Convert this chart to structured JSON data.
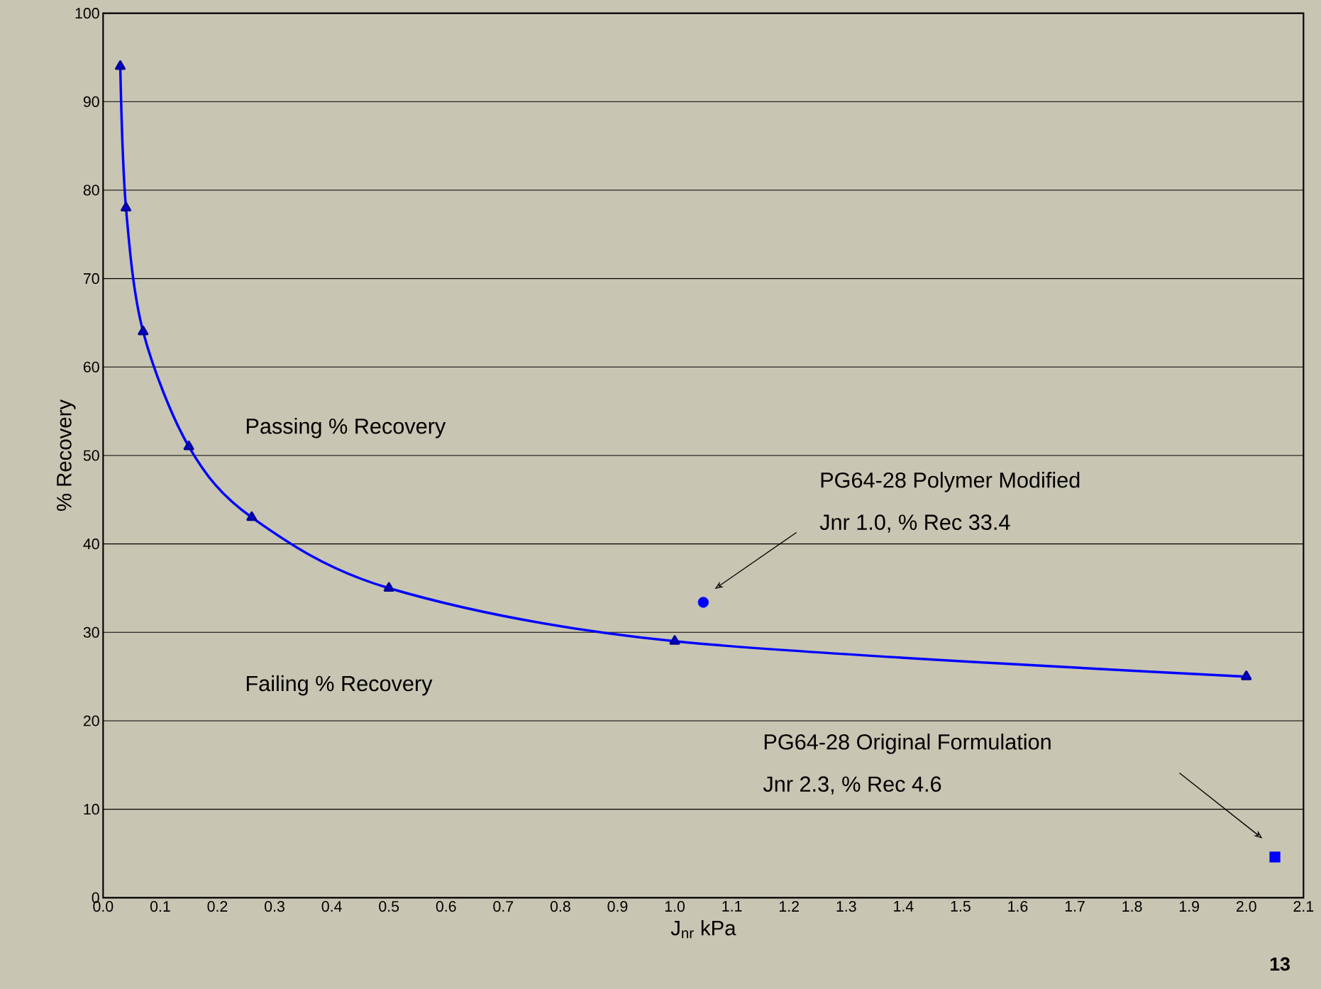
{
  "chart_data": {
    "type": "line",
    "xlabel": "J$_{nr}$ kPa",
    "ylabel": "% Recovery",
    "xlim": [
      0,
      2.1
    ],
    "xticks": [
      {
        "value": 0,
        "label": "0.0"
      },
      {
        "value": 0.1,
        "label": "0.1"
      },
      {
        "value": 0.2,
        "label": "0.2"
      },
      {
        "value": 0.3,
        "label": "0.3"
      },
      {
        "value": 0.4,
        "label": "0.4"
      },
      {
        "value": 0.5,
        "label": "0.5"
      },
      {
        "value": 0.6,
        "label": "0.6"
      },
      {
        "value": 0.7,
        "label": "0.7"
      },
      {
        "value": 0.8,
        "label": "0.8"
      },
      {
        "value": 0.9,
        "label": "0.9"
      },
      {
        "value": 1.0,
        "label": "1.0"
      },
      {
        "value": 1.1,
        "label": "1.1"
      },
      {
        "value": 1.2,
        "label": "1.2"
      },
      {
        "value": 1.3,
        "label": "1.3"
      },
      {
        "value": 1.4,
        "label": "1.4"
      },
      {
        "value": 1.5,
        "label": "1.5"
      },
      {
        "value": 1.6,
        "label": "1.6"
      },
      {
        "value": 1.7,
        "label": "1.7"
      },
      {
        "value": 1.8,
        "label": "1.8"
      },
      {
        "value": 1.9,
        "label": "1.9"
      },
      {
        "value": 2.0,
        "label": "2.0"
      },
      {
        "value": 2.1,
        "label": "2.1"
      }
    ],
    "ylim": [
      0,
      100
    ],
    "yticks": [
      0,
      10,
      20,
      30,
      40,
      50,
      60,
      70,
      80,
      90,
      100
    ],
    "grid": "y",
    "series": [
      {
        "marker": "triangle",
        "color": "#0000ff",
        "x": [
          0.03,
          0.04,
          0.07,
          0.15,
          0.26,
          0.5,
          1.0,
          2.0
        ],
        "values": [
          94,
          78,
          64,
          51,
          43,
          35,
          29,
          25
        ]
      },
      {
        "type": "scatter",
        "marker": "circle",
        "color": "#0000ff",
        "x": [
          1.05
        ],
        "values": [
          33.4
        ]
      },
      {
        "type": "scatter",
        "marker": "square",
        "color": "#0000ff",
        "x": [
          2.05
        ],
        "values": [
          4.6
        ]
      }
    ],
    "annotations": [
      "Passing % Recovery",
      "Failing % Recovery",
      "PG64-28 Polymer Modified",
      "Jnr 1.0, % Rec 33.4",
      "PG64-28 Original Formulation",
      "Jnr 2.3, % Rec 4.6",
      "13"
    ]
  }
}
